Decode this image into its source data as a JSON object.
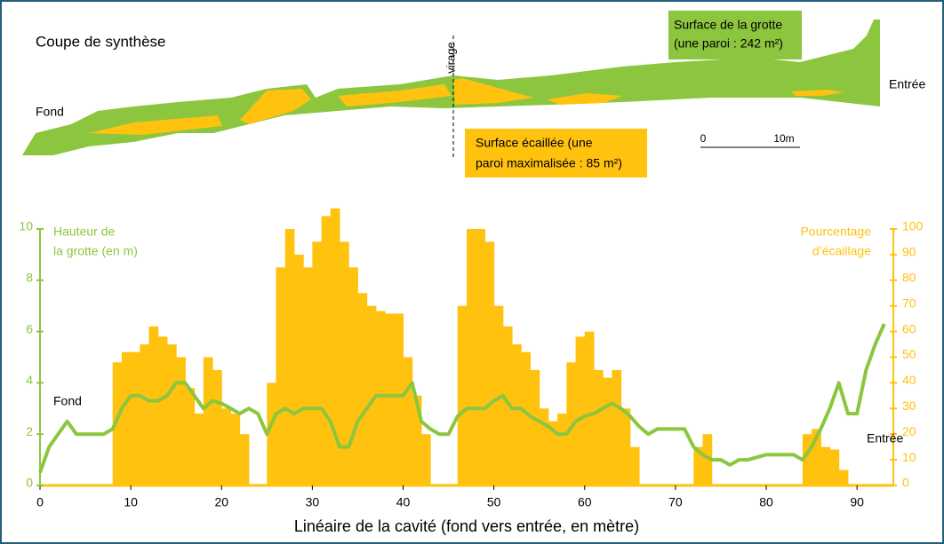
{
  "section": {
    "title": "Coupe de synthèse",
    "left_end": "Fond",
    "right_end": "Entrée",
    "turn": "virage",
    "cave_label": [
      "Surface de la grotte",
      "(une paroi : 242 m²)"
    ],
    "scaled_label": [
      "Surface écaillée (une",
      "paroi maximalisée : 85 m²)"
    ],
    "scale": [
      "0",
      "10m"
    ]
  },
  "chart_data": {
    "type": "line-area",
    "x_label": "Linéaire de la cavité (fond vers entrée, en mètre)",
    "y_label": [
      "Hauteur de",
      "la grotte (en m)"
    ],
    "y2_label": [
      "Pourcentage",
      "d’écaillage"
    ],
    "annotations": [
      "Fond",
      "Entrée"
    ],
    "x": [
      0,
      1,
      2,
      3,
      4,
      5,
      6,
      7,
      8,
      9,
      10,
      11,
      12,
      13,
      14,
      15,
      16,
      17,
      18,
      19,
      20,
      21,
      22,
      23,
      24,
      25,
      26,
      27,
      28,
      29,
      30,
      31,
      32,
      33,
      34,
      35,
      36,
      37,
      38,
      39,
      40,
      41,
      42,
      43,
      44,
      45,
      46,
      47,
      48,
      49,
      50,
      51,
      52,
      53,
      54,
      55,
      56,
      57,
      58,
      59,
      60,
      61,
      62,
      63,
      64,
      65,
      66,
      67,
      68,
      69,
      70,
      71,
      72,
      73,
      74,
      75,
      76,
      77,
      78,
      79,
      80,
      81,
      82,
      83,
      84,
      85,
      86,
      87,
      88,
      89,
      90,
      91,
      92,
      93
    ],
    "series": [
      {
        "name": "Hauteur de la grotte",
        "color": "#8cc63f",
        "axis": "y",
        "values": [
          0.5,
          1.5,
          2.0,
          2.5,
          2.0,
          2.0,
          2.0,
          2.0,
          2.2,
          3.0,
          3.5,
          3.5,
          3.3,
          3.3,
          3.5,
          4.0,
          4.0,
          3.5,
          3.0,
          3.3,
          3.2,
          3.0,
          2.8,
          3.0,
          2.8,
          2.0,
          2.8,
          3.0,
          2.8,
          3.0,
          3.0,
          3.0,
          2.5,
          1.5,
          1.5,
          2.5,
          3.0,
          3.5,
          3.5,
          3.5,
          3.5,
          4.0,
          2.5,
          2.2,
          2.0,
          2.0,
          2.7,
          3.0,
          3.0,
          3.0,
          3.3,
          3.5,
          3.0,
          3.0,
          2.7,
          2.5,
          2.3,
          2.0,
          2.0,
          2.5,
          2.7,
          2.8,
          3.0,
          3.2,
          3.0,
          2.7,
          2.3,
          2.0,
          2.2,
          2.2,
          2.2,
          2.2,
          1.5,
          1.2,
          1.0,
          1.0,
          0.8,
          1.0,
          1.0,
          1.1,
          1.2,
          1.2,
          1.2,
          1.2,
          1.0,
          1.5,
          2.2,
          3.0,
          4.0,
          2.8,
          2.8,
          4.5,
          5.5,
          6.3
        ]
      },
      {
        "name": "Pourcentage d'écaillage",
        "color": "#ffc20e",
        "axis": "y2",
        "values": [
          0,
          0,
          0,
          0,
          0,
          0,
          0,
          0,
          48,
          52,
          52,
          55,
          62,
          58,
          55,
          50,
          38,
          28,
          50,
          45,
          30,
          28,
          20,
          0,
          0,
          40,
          85,
          100,
          90,
          85,
          95,
          105,
          108,
          95,
          85,
          75,
          70,
          68,
          67,
          67,
          50,
          35,
          20,
          0,
          0,
          0,
          70,
          100,
          100,
          95,
          70,
          62,
          55,
          52,
          45,
          30,
          25,
          28,
          48,
          58,
          60,
          45,
          42,
          45,
          30,
          15,
          0,
          0,
          0,
          0,
          0,
          0,
          15,
          20,
          0,
          0,
          0,
          0,
          0,
          0,
          0,
          0,
          0,
          0,
          20,
          22,
          15,
          14,
          6,
          0,
          0,
          0,
          0,
          0
        ]
      }
    ],
    "xlim": [
      0,
      94
    ],
    "xticks": [
      0,
      10,
      20,
      30,
      40,
      50,
      60,
      70,
      80,
      90
    ],
    "ylim": [
      0,
      10
    ],
    "yticks": [
      0,
      2,
      4,
      6,
      8,
      10
    ],
    "y2lim": [
      0,
      100
    ],
    "y2ticks": [
      0,
      10,
      20,
      30,
      40,
      50,
      60,
      70,
      80,
      90,
      100
    ]
  }
}
